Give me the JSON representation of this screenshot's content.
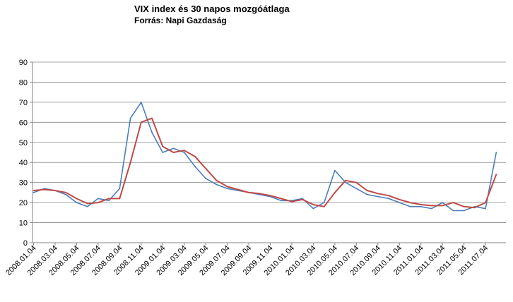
{
  "chart_data": {
    "type": "line",
    "title": "VIX index és 30 napos mozgóátlaga",
    "subtitle": "Forrás: Napi Gazdaság",
    "xlabel": "",
    "ylabel": "",
    "ylim": [
      0,
      90
    ],
    "yticks": [
      0,
      10,
      20,
      30,
      40,
      50,
      60,
      70,
      80,
      90
    ],
    "grid": true,
    "legend": "none",
    "x_tick_labels": [
      "2008.01.04",
      "2008.03.04",
      "2008.05.04",
      "2008.07.04",
      "2008.09.04",
      "2008.11.04",
      "2009.01.04",
      "2009.03.04",
      "2009.05.04",
      "2009.07.04",
      "2009.09.04",
      "2009.11.04",
      "2010.01.04",
      "2010.03.04",
      "2010.05.04",
      "2010.07.04",
      "2010.09.04",
      "2010.11.04",
      "2011.01.04",
      "2011.03.04",
      "2011.05.04",
      "2011.07.04"
    ],
    "x_months": [
      "2008.01",
      "2008.02",
      "2008.03",
      "2008.04",
      "2008.05",
      "2008.06",
      "2008.07",
      "2008.08",
      "2008.09",
      "2008.10",
      "2008.11",
      "2008.12",
      "2009.01",
      "2009.02",
      "2009.03",
      "2009.04",
      "2009.05",
      "2009.06",
      "2009.07",
      "2009.08",
      "2009.09",
      "2009.10",
      "2009.11",
      "2009.12",
      "2010.01",
      "2010.02",
      "2010.03",
      "2010.04",
      "2010.05",
      "2010.06",
      "2010.07",
      "2010.08",
      "2010.09",
      "2010.10",
      "2010.11",
      "2010.12",
      "2011.01",
      "2011.02",
      "2011.03",
      "2011.04",
      "2011.05",
      "2011.06",
      "2011.07",
      "2011.08"
    ],
    "series": [
      {
        "color": "#4a7ebb",
        "values": [
          25,
          27,
          26,
          24,
          20,
          18,
          22,
          21,
          27,
          62,
          70,
          55,
          45,
          47,
          45,
          38,
          32,
          29,
          27,
          26,
          25,
          24,
          23,
          21,
          21,
          22,
          17,
          20,
          36,
          30,
          27,
          24,
          23,
          22,
          20,
          18,
          18,
          17,
          20,
          16,
          16,
          18,
          17,
          45
        ]
      },
      {
        "color": "#be4b48",
        "values": [
          26,
          26.5,
          26,
          25,
          22,
          19.5,
          20,
          22,
          22,
          40,
          60,
          62,
          48,
          45,
          46,
          43,
          37,
          31,
          28,
          26.5,
          25,
          24.5,
          23.5,
          22,
          20.5,
          21.5,
          19,
          18,
          25,
          31,
          30,
          26,
          24.5,
          23.5,
          21.5,
          20,
          19,
          18.5,
          18.5,
          20,
          18,
          17.5,
          20,
          34
        ]
      }
    ]
  }
}
